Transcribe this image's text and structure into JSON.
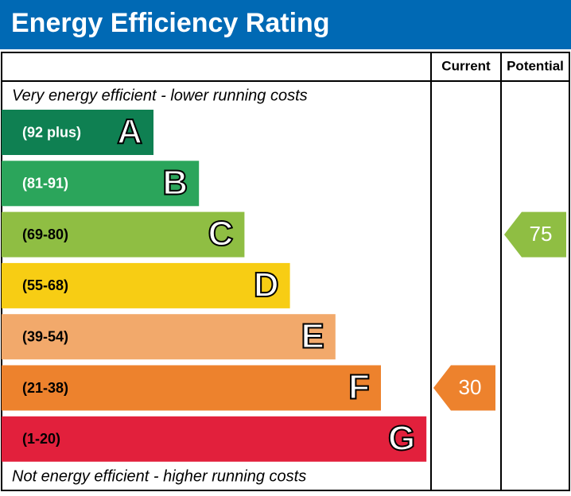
{
  "header": {
    "title": "Energy Efficiency Rating"
  },
  "columns": {
    "current": "Current",
    "potential": "Potential"
  },
  "top_note": "Very energy efficient - lower running costs",
  "bottom_note": "Not energy efficient - higher running costs",
  "bands": [
    {
      "range": "(92 plus)",
      "letter": "A",
      "color": "#0f8052",
      "text_color": "#ffffff"
    },
    {
      "range": "(81-91)",
      "letter": "B",
      "color": "#2ba55b",
      "text_color": "#ffffff"
    },
    {
      "range": "(69-80)",
      "letter": "C",
      "color": "#8fbe43",
      "text_color": "#000000"
    },
    {
      "range": "(55-68)",
      "letter": "D",
      "color": "#f7cd14",
      "text_color": "#000000"
    },
    {
      "range": "(39-54)",
      "letter": "E",
      "color": "#f2a96b",
      "text_color": "#000000"
    },
    {
      "range": "(21-38)",
      "letter": "F",
      "color": "#ed822d",
      "text_color": "#000000"
    },
    {
      "range": "(1-20)",
      "letter": "G",
      "color": "#e2203c",
      "text_color": "#000000"
    }
  ],
  "current": {
    "value": 30
  },
  "potential": {
    "value": 75
  }
}
